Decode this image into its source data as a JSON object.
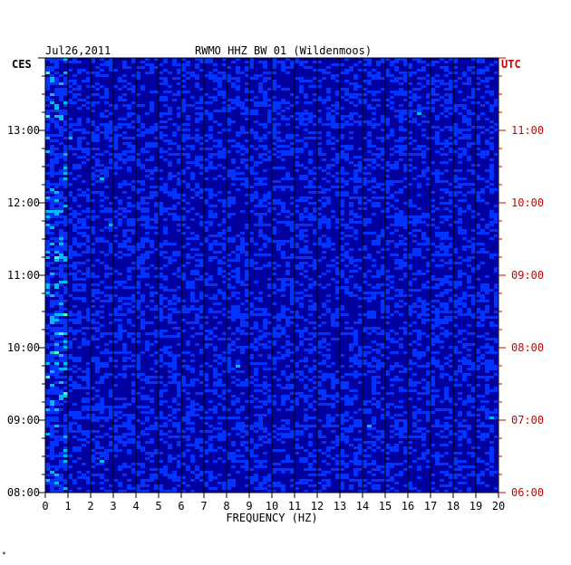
{
  "header": {
    "date": "Jul26,2011",
    "title": "RWMO HHZ BW 01 (Wildenmoos)",
    "left_zone": "CES",
    "right_zone": "UTC"
  },
  "footer": {
    "mark": "*"
  },
  "colors": {
    "background": "#0000a0",
    "local_time_text": "#000000",
    "utc_time_text": "#cc0000",
    "palette": [
      "#0000a0",
      "#0033ff",
      "#00bbff",
      "#44ffcc",
      "#ffff00",
      "#ff6600",
      "#cc0000"
    ]
  },
  "chart_data": {
    "type": "heatmap",
    "title": "RWMO HHZ BW 01 (Wildenmoos)",
    "xlabel": "FREQUENCY (HZ)",
    "xlim": [
      0,
      20
    ],
    "x_ticks": [
      "0",
      "1",
      "2",
      "3",
      "4",
      "5",
      "6",
      "7",
      "8",
      "9",
      "10",
      "11",
      "12",
      "13",
      "14",
      "15",
      "16",
      "17",
      "18",
      "19",
      "20"
    ],
    "left_axis": {
      "label": "CES",
      "ticks": [
        "13:00",
        "12:00",
        "11:00",
        "10:00",
        "09:00",
        "08:00"
      ]
    },
    "right_axis": {
      "label": "UTC",
      "ticks": [
        "11:00",
        "10:00",
        "09:00",
        "08:00",
        "07:00",
        "06:00"
      ]
    },
    "time_range_ces": [
      "08:00",
      "14:00"
    ],
    "grid": true
  }
}
